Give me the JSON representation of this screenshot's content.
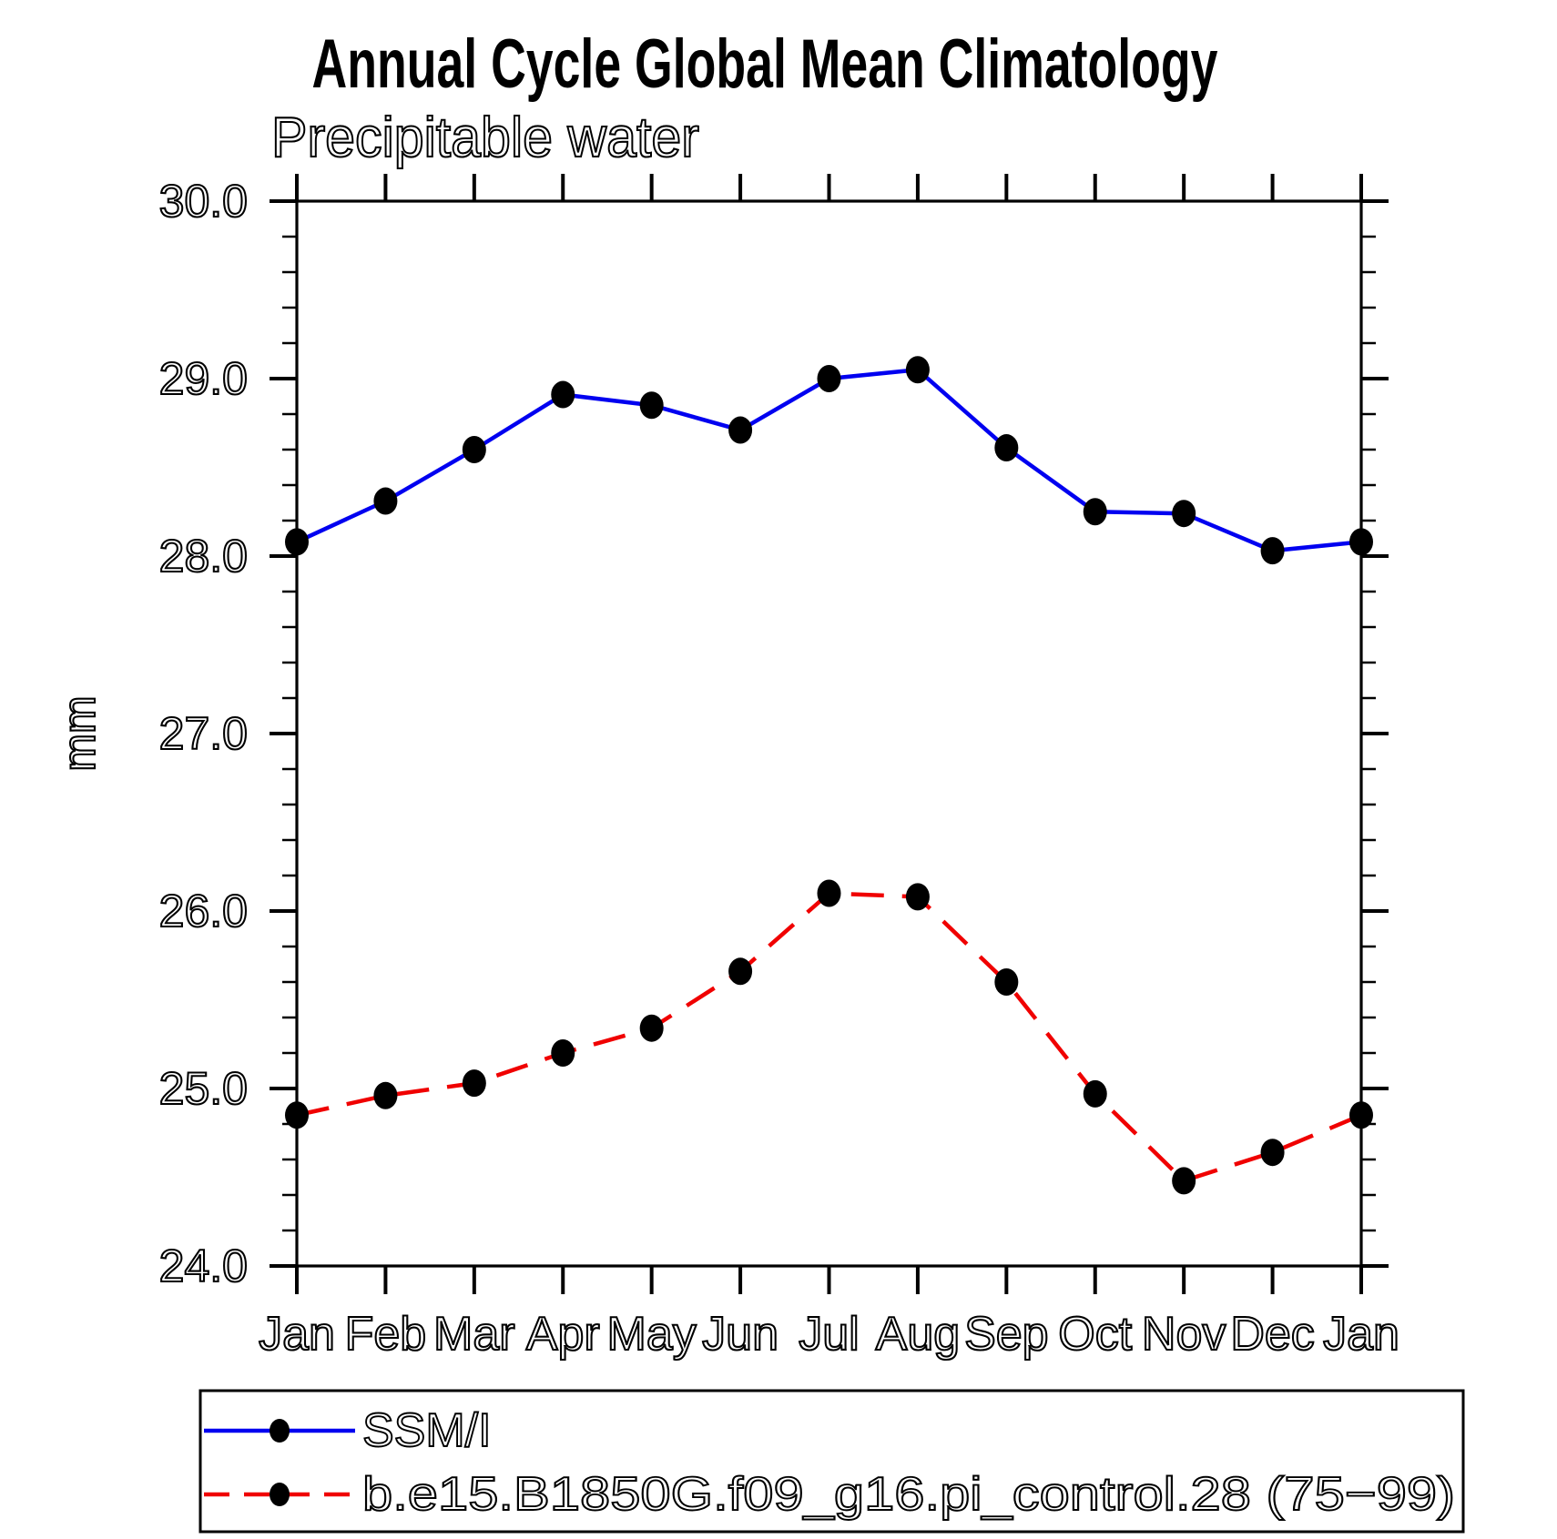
{
  "header": {
    "title": "Annual Cycle Global Mean Climatology",
    "subtitle": "Precipitable water"
  },
  "y_axis": {
    "label": "mm",
    "min": 24.0,
    "max": 30.0,
    "major_step": 1.0,
    "minor_step": 0.2,
    "tick_labels": [
      "24.0",
      "25.0",
      "26.0",
      "27.0",
      "28.0",
      "29.0",
      "30.0"
    ]
  },
  "x_axis": {
    "tick_labels": [
      "Jan",
      "Feb",
      "Mar",
      "Apr",
      "May",
      "Jun",
      "Jul",
      "Aug",
      "Sep",
      "Oct",
      "Nov",
      "Dec",
      "Jan"
    ]
  },
  "legend": {
    "entries": [
      {
        "label": "SSM/I",
        "color": "#0000f0",
        "line_style": "solid",
        "marker": "filled-circle"
      },
      {
        "label": "b.e15.B1850G.f09_g16.pi_control.28 (75−99)",
        "color": "#f00000",
        "line_style": "dashed",
        "marker": "filled-circle"
      }
    ]
  },
  "chart_data": {
    "type": "line",
    "title": "Annual Cycle Global Mean Climatology",
    "subtitle": "Precipitable water",
    "xlabel": "",
    "ylabel": "mm",
    "ylim": [
      24.0,
      30.0
    ],
    "ytick_step": 1.0,
    "yminor_step": 0.2,
    "grid": false,
    "legend_position": "bottom",
    "categories": [
      "Jan",
      "Feb",
      "Mar",
      "Apr",
      "May",
      "Jun",
      "Jul",
      "Aug",
      "Sep",
      "Oct",
      "Nov",
      "Dec",
      "Jan"
    ],
    "series": [
      {
        "name": "SSM/I",
        "color": "#0000f0",
        "line_style": "solid",
        "marker": "filled-circle",
        "marker_color": "#000000",
        "values": [
          28.08,
          28.31,
          28.6,
          28.91,
          28.85,
          28.71,
          29.0,
          29.05,
          28.61,
          28.25,
          28.24,
          28.03,
          28.08
        ]
      },
      {
        "name": "b.e15.B1850G.f09_g16.pi_control.28 (75−99)",
        "color": "#f00000",
        "line_style": "dashed",
        "marker": "filled-circle",
        "marker_color": "#000000",
        "values": [
          24.85,
          24.96,
          25.03,
          25.2,
          25.34,
          25.66,
          26.1,
          26.08,
          25.6,
          24.97,
          24.48,
          24.64,
          24.85
        ]
      }
    ]
  }
}
